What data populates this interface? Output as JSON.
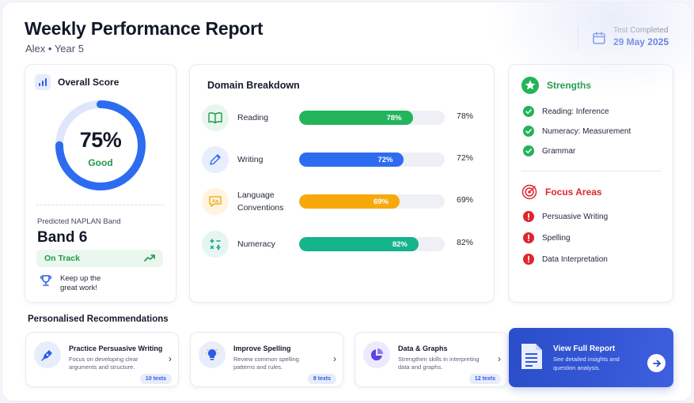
{
  "header": {
    "title": "Weekly Performance Report",
    "subtitle": "Alex • Year 5",
    "test_completed_label": "Test Completed",
    "test_completed_date": "29 May 2025"
  },
  "overall": {
    "label": "Overall Score",
    "score": "75%",
    "score_fraction": 0.75,
    "status": "Good",
    "band_label": "Predicted NAPLAN Band",
    "band": "Band 6",
    "track": "On Track",
    "encouragement": "Keep up the great work!"
  },
  "domain": {
    "title": "Domain Breakdown",
    "rows": [
      {
        "name": "Reading",
        "value_label": "78%",
        "pct_label": "78%",
        "value": 78,
        "color": "#22b45a",
        "icon": "book-icon"
      },
      {
        "name": "Writing",
        "value_label": "72%",
        "pct_label": "72%",
        "value": 72,
        "color": "#2d6cf0",
        "icon": "pencil-icon"
      },
      {
        "name": "Language Conventions",
        "value_label": "69%",
        "pct_label": "69%",
        "value": 69,
        "color": "#f7a90c",
        "icon": "aa-icon"
      },
      {
        "name": "Numeracy",
        "value_label": "82%",
        "pct_label": "82%",
        "value": 82,
        "color": "#15b48a",
        "icon": "math-icon"
      }
    ]
  },
  "strengths": {
    "title": "Strengths",
    "items": [
      "Reading: Inference",
      "Numeracy: Measurement",
      "Grammar"
    ]
  },
  "focus": {
    "title": "Focus Areas",
    "items": [
      "Persuasive Writing",
      "Spelling",
      "Data Interpretation"
    ]
  },
  "recommendations": {
    "title": "Personalised Recommendations",
    "items": [
      {
        "title": "Practice Persuasive Writing",
        "desc": "Focus on developing clear arguments and structure.",
        "badge": "10 texts"
      },
      {
        "title": "Improve Spelling",
        "desc": "Review common spelling patterns and rules.",
        "badge": "8 texts"
      },
      {
        "title": "Data & Graphs",
        "desc": "Strengthen skills in interpreting data and graphs.",
        "badge": "12 texts"
      }
    ]
  },
  "full_report": {
    "title": "View Full Report",
    "desc": "See detailed insights and question analysis."
  },
  "colors": {
    "accent": "#2d5be3",
    "good": "#1f9a4a",
    "focus": "#e0262c"
  }
}
